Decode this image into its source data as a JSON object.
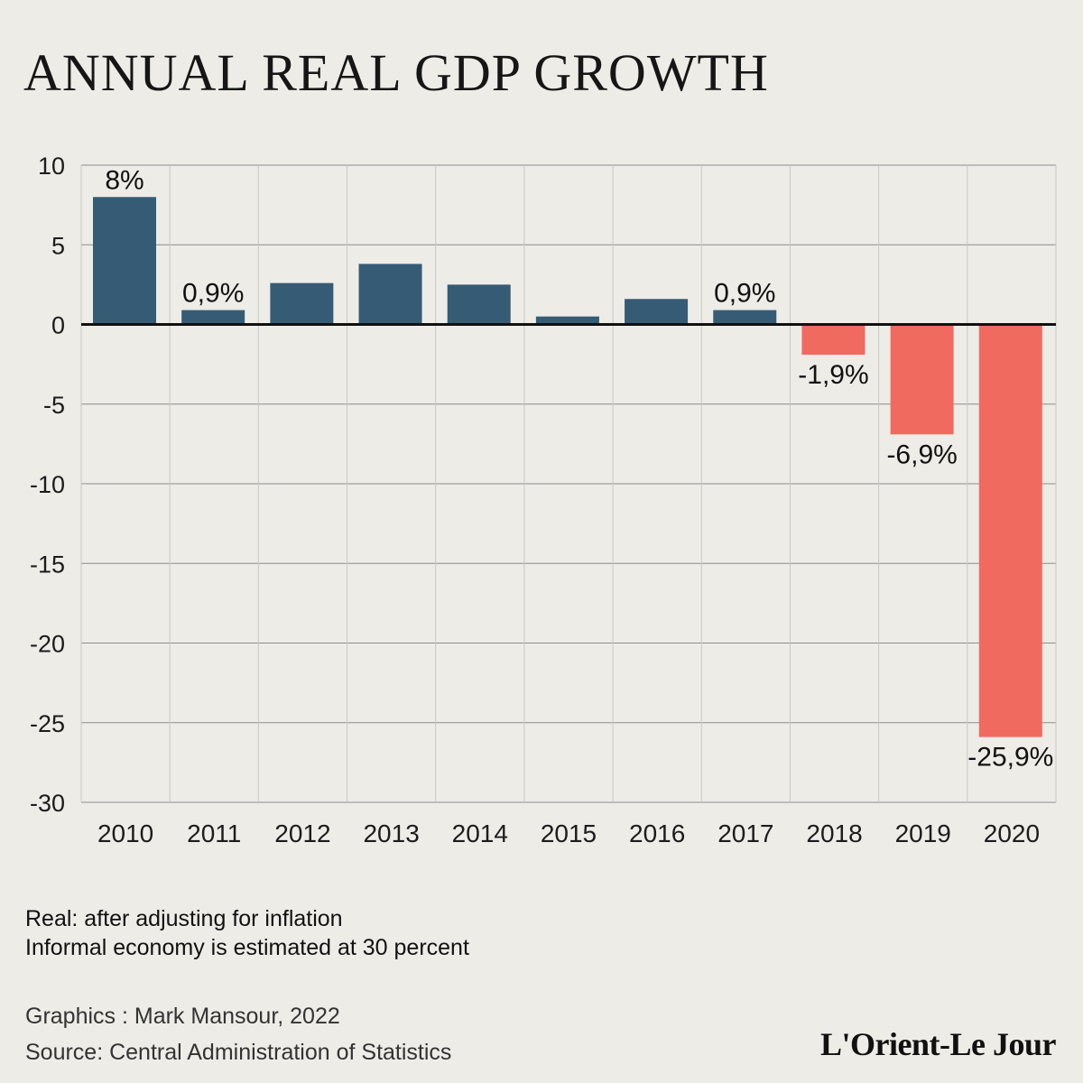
{
  "title": "ANNUAL REAL GDP GROWTH",
  "chart_data": {
    "type": "bar",
    "title": "ANNUAL REAL GDP GROWTH",
    "xlabel": "",
    "ylabel": "",
    "categories": [
      "2010",
      "2011",
      "2012",
      "2013",
      "2014",
      "2015",
      "2016",
      "2017",
      "2018",
      "2019",
      "2020"
    ],
    "values": [
      8,
      0.9,
      2.6,
      3.8,
      2.5,
      0.5,
      1.6,
      0.9,
      -1.9,
      -6.9,
      -25.9
    ],
    "data_labels": [
      "8%",
      "0,9%",
      "",
      "",
      "",
      "",
      "",
      "0,9%",
      "-1,9%",
      "-6,9%",
      "-25,9%"
    ],
    "ylim": [
      -30,
      10
    ],
    "yticks": [
      10,
      5,
      0,
      -5,
      -10,
      -15,
      -20,
      -25,
      -30
    ],
    "grid": true,
    "colors": {
      "positive": "#365c75",
      "negative": "#f16a60",
      "grid": "#8c8c8c",
      "axis": "#111111"
    }
  },
  "notes": [
    "Real: after adjusting for inflation",
    "Informal economy is estimated at 30 percent"
  ],
  "credits": {
    "graphics": "Graphics : Mark Mansour, 2022",
    "source": "Source: Central Administration of Statistics"
  },
  "logo": "L'Orient-Le Jour"
}
